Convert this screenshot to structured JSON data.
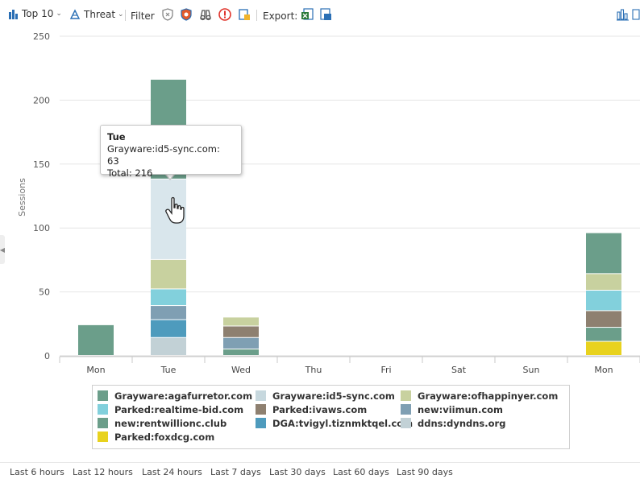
{
  "toolbar": {
    "top_label": "Top 10",
    "threat_label": "Threat",
    "filter_label": "Filter",
    "export_label": "Export:",
    "icons": [
      "bar-chart-icon",
      "threat-icon",
      "filter-shield-icon",
      "filter-shield-red-icon",
      "binoculars-icon",
      "alert-icon",
      "lock-file-icon",
      "export-excel-icon",
      "export-pdf-icon",
      "chart-type-icon",
      "chart-view-icon"
    ]
  },
  "tooltip": {
    "title": "Tue",
    "line1": "Grayware:id5-sync.com: 63",
    "line2": "Total: 216"
  },
  "time_ranges": [
    "Last 6 hours",
    "Last 12 hours",
    "Last 24 hours",
    "Last 7 days",
    "Last 30 days",
    "Last 60 days",
    "Last 90 days"
  ],
  "chart_data": {
    "type": "bar",
    "stacked": true,
    "ylabel": "Sessions",
    "xlabel": "",
    "ylim": [
      0,
      250
    ],
    "yticks": [
      0,
      50,
      100,
      150,
      200,
      250
    ],
    "categories": [
      "Mon",
      "Tue",
      "Wed",
      "Thu",
      "Fri",
      "Sat",
      "Sun",
      "Mon"
    ],
    "legend_position": "bottom",
    "grid": true,
    "series": [
      {
        "name": "Grayware:agafurretor.com",
        "color": "#6b9e8a",
        "values": [
          0,
          78,
          0,
          0,
          0,
          0,
          0,
          32
        ]
      },
      {
        "name": "Grayware:id5-sync.com",
        "color": "#c7d8de",
        "values": [
          0,
          63,
          0,
          0,
          0,
          0,
          0,
          0
        ]
      },
      {
        "name": "Grayware:ofhappinyer.com",
        "color": "#c8d19f",
        "values": [
          0,
          23,
          7,
          0,
          0,
          0,
          0,
          13
        ]
      },
      {
        "name": "Parked:realtime-bid.com",
        "color": "#82d0dc",
        "values": [
          0,
          13,
          0,
          0,
          0,
          0,
          0,
          16
        ]
      },
      {
        "name": "Parked:ivaws.com",
        "color": "#8e8070",
        "values": [
          0,
          0,
          9,
          0,
          0,
          0,
          0,
          13
        ]
      },
      {
        "name": "new:viimun.com",
        "color": "#7f9fb3",
        "values": [
          0,
          11,
          9,
          0,
          0,
          0,
          0,
          0
        ]
      },
      {
        "name": "new:rentwillionc.club",
        "color": "#6b9e8a",
        "values": [
          24,
          0,
          5,
          0,
          0,
          0,
          0,
          11
        ]
      },
      {
        "name": "DGA:tvigyl.tiznmktqel.com",
        "color": "#4e9bbd",
        "values": [
          0,
          14,
          0,
          0,
          0,
          0,
          0,
          0
        ]
      },
      {
        "name": "ddns:dyndns.org",
        "color": "#c2d1d6",
        "values": [
          0,
          14,
          0,
          0,
          0,
          0,
          0,
          0
        ]
      },
      {
        "name": "Parked:foxdcg.com",
        "color": "#e8d21e",
        "values": [
          0,
          0,
          0,
          0,
          0,
          0,
          0,
          11
        ]
      }
    ],
    "highlight": {
      "category_index": 1,
      "series_index": 1,
      "color": "#d9e6ec"
    }
  }
}
